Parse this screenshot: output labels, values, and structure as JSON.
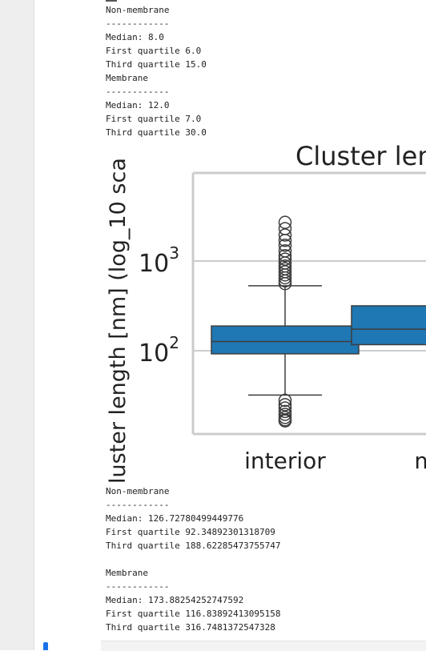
{
  "top_output": [
    "Non-membrane",
    "------------",
    "Median: 8.0",
    "First quartile 6.0",
    "Third quartile 15.0",
    "Membrane",
    "------------",
    "Median: 12.0",
    "First quartile 7.0",
    "Third quartile 30.0"
  ],
  "bottom_output": [
    "Non-membrane",
    "------------",
    "Median: 126.72780499449776",
    "First quartile 92.34892301318709",
    "Third quartile 188.62285473755747",
    "",
    "Membrane",
    "------------",
    "Median: 173.88254252747592",
    "First quartile 116.83892413095158",
    "Third quartile 316.7481372547328"
  ],
  "chart_data": {
    "type": "box",
    "title": "Cluster leng",
    "ylabel": "luster length [nm] (log_10 sca",
    "y_scale": "log10",
    "y_ticks": [
      {
        "base": "10",
        "exp": "2",
        "value": 100
      },
      {
        "base": "10",
        "exp": "3",
        "value": 1000
      }
    ],
    "ylim": [
      16,
      3000
    ],
    "categories": [
      "interior",
      "m"
    ],
    "box_color": "#1f77b4",
    "boxes": [
      {
        "category": "interior",
        "q1": 92.35,
        "median": 126.73,
        "q3": 188.62,
        "whisker_low": 32,
        "whisker_high": 530,
        "outliers_high": [
          560,
          600,
          650,
          700,
          760,
          820,
          880,
          950,
          1050,
          1150,
          1300,
          1500,
          1700,
          1950,
          2300,
          2700
        ],
        "outliers_low": [
          28,
          25,
          23,
          21,
          19.5,
          18,
          17,
          16.5
        ]
      },
      {
        "category": "m",
        "q1": 116.84,
        "median": 173.88,
        "q3": 316.75,
        "whisker_low": null,
        "whisker_high": null,
        "outliers_high": [],
        "outliers_low": []
      }
    ],
    "grid": "horizontal"
  }
}
